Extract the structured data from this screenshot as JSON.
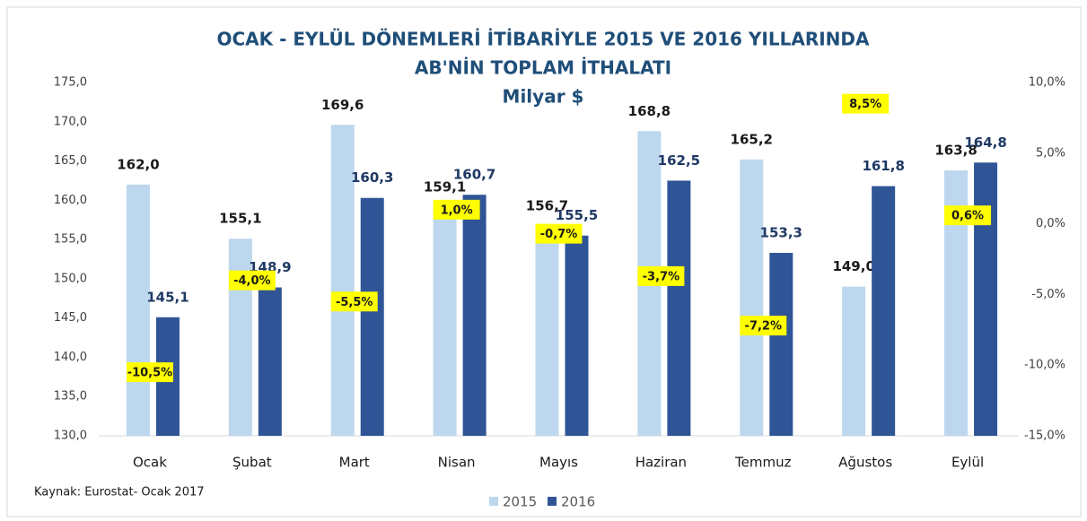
{
  "chart_data": {
    "type": "bar",
    "title": "OCAK - EYLÜL DÖNEMLERİ İTİBARİYLE 2015 VE 2016 YILLARINDA",
    "subtitle": "AB'NİN TOPLAM İTHALATI",
    "unit_label": "Milyar $",
    "source": "Kaynak: Eurostat- Ocak 2017",
    "categories": [
      "Ocak",
      "Şubat",
      "Mart",
      "Nisan",
      "Mayıs",
      "Haziran",
      "Temmuz",
      "Ağustos",
      "Eylül"
    ],
    "series": [
      {
        "name": "2015",
        "color": "#bdd7ee",
        "values": [
          162.0,
          155.1,
          169.6,
          159.1,
          156.7,
          168.8,
          165.2,
          149.0,
          163.8
        ],
        "value_labels": [
          "162,0",
          "155,1",
          "169,6",
          "159,1",
          "156,7",
          "168,8",
          "165,2",
          "149,0",
          "163,8"
        ],
        "label_color": "#1a1a1a"
      },
      {
        "name": "2016",
        "color": "#2f5597",
        "values": [
          145.1,
          148.9,
          160.3,
          160.7,
          155.5,
          162.5,
          153.3,
          161.8,
          164.8
        ],
        "value_labels": [
          "145,1",
          "148,9",
          "160,3",
          "160,7",
          "155,5",
          "162,5",
          "153,3",
          "161,8",
          "164,8"
        ],
        "label_color": "#1f3864"
      }
    ],
    "changes": {
      "axis": "y2",
      "color": "#ffff00",
      "values": [
        -10.5,
        -4.0,
        -5.5,
        1.0,
        -0.7,
        -3.7,
        -7.2,
        8.5,
        0.6
      ],
      "value_labels": [
        "-10,5%",
        "-4,0%",
        "-5,5%",
        "1,0%",
        "-0,7%",
        "-3,7%",
        "-7,2%",
        "8,5%",
        "0,6%"
      ]
    },
    "ylim": [
      130,
      175
    ],
    "yticks": [
      {
        "value": 130,
        "label": "130,0"
      },
      {
        "value": 135,
        "label": "135,0"
      },
      {
        "value": 140,
        "label": "140,0"
      },
      {
        "value": 145,
        "label": "145,0"
      },
      {
        "value": 150,
        "label": "150,0"
      },
      {
        "value": 155,
        "label": "155,0"
      },
      {
        "value": 160,
        "label": "160,0"
      },
      {
        "value": 165,
        "label": "165,0"
      },
      {
        "value": 170,
        "label": "170,0"
      },
      {
        "value": 175,
        "label": "175,0"
      }
    ],
    "y2lim": [
      -15,
      10
    ],
    "y2ticks": [
      {
        "value": -15,
        "label": "-15,0%"
      },
      {
        "value": -10,
        "label": "-10,0%"
      },
      {
        "value": -5,
        "label": "-5,0%"
      },
      {
        "value": 0,
        "label": "0,0%"
      },
      {
        "value": 5,
        "label": "5,0%"
      },
      {
        "value": 10,
        "label": "10,0%"
      }
    ],
    "legend": "bottom"
  }
}
